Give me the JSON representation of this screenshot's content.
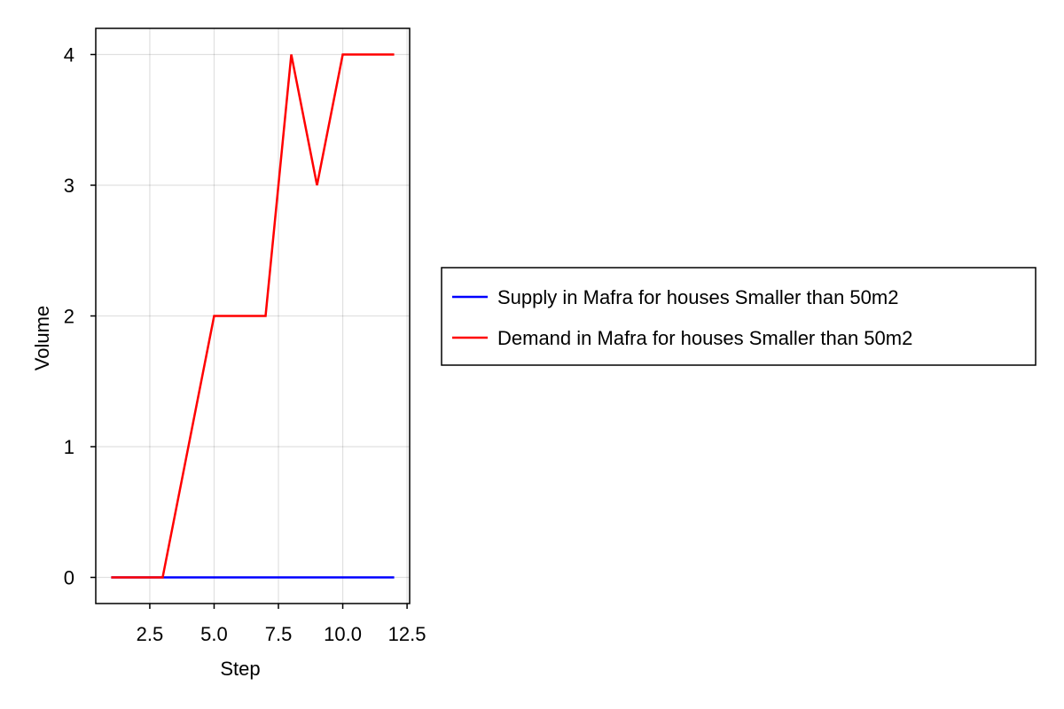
{
  "chart_data": {
    "type": "line",
    "xlabel": "Step",
    "ylabel": "Volume",
    "xlim": [
      0.4,
      12.6
    ],
    "ylim": [
      -0.2,
      4.2
    ],
    "x_ticks": [
      2.5,
      5.0,
      7.5,
      10.0,
      12.5
    ],
    "x_tick_labels": [
      "2.5",
      "5.0",
      "7.5",
      "10.0",
      "12.5"
    ],
    "y_ticks": [
      0,
      1,
      2,
      3,
      4
    ],
    "y_tick_labels": [
      "0",
      "1",
      "2",
      "3",
      "4"
    ],
    "grid": true,
    "legend_position": "right",
    "x": [
      1,
      2,
      3,
      4,
      5,
      6,
      7,
      8,
      9,
      10,
      11,
      12
    ],
    "series": [
      {
        "name": "Supply in Mafra for houses Smaller than 50m2",
        "color": "#0000ff",
        "values": [
          0,
          0,
          0,
          0,
          0,
          0,
          0,
          0,
          0,
          0,
          0,
          0
        ]
      },
      {
        "name": "Demand in Mafra for houses Smaller than 50m2",
        "color": "#ff0000",
        "values": [
          0,
          0,
          0,
          1,
          2,
          2,
          2,
          4,
          3,
          4,
          4,
          4
        ]
      }
    ]
  }
}
